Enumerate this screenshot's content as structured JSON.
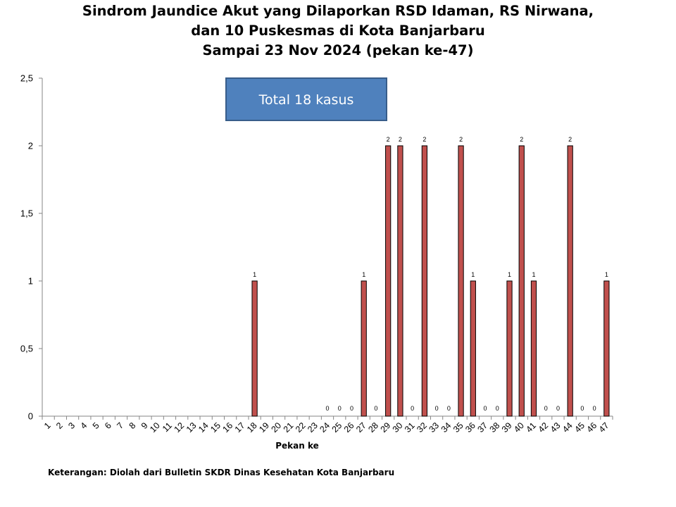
{
  "title_lines": [
    "Sindrom Jaundice Akut yang Dilaporkan RSD Idaman, RS Nirwana,",
    "dan 10 Puskesmas di Kota Banjarbaru",
    "Sampai 23 Nov 2024 (pekan ke-47)"
  ],
  "annotation": "Total 18 kasus",
  "footnote": "Keterangan: Diolah dari Bulletin SKDR Dinas Kesehatan Kota Banjarbaru",
  "colors": {
    "bar_fill": "#c0504d",
    "bar_stroke": "#000000",
    "box_fill": "#4f81bd",
    "box_stroke": "#385d8a"
  },
  "chart_data": {
    "type": "bar",
    "xlabel": "Pekan ke",
    "ylabel": "",
    "ylim": [
      0,
      2.5
    ],
    "y_ticks": [
      "0",
      "0,5",
      "1",
      "1,5",
      "2",
      "2,5"
    ],
    "grid": false,
    "legend": "none",
    "categories": [
      "1",
      "2",
      "3",
      "4",
      "5",
      "6",
      "7",
      "8",
      "9",
      "10",
      "11",
      "12",
      "13",
      "14",
      "15",
      "16",
      "17",
      "18",
      "19",
      "20",
      "21",
      "22",
      "23",
      "24",
      "25",
      "26",
      "27",
      "28",
      "29",
      "30",
      "31",
      "32",
      "33",
      "34",
      "35",
      "36",
      "37",
      "38",
      "39",
      "40",
      "41",
      "42",
      "43",
      "44",
      "45",
      "46",
      "47"
    ],
    "values": [
      null,
      null,
      null,
      null,
      null,
      null,
      null,
      null,
      null,
      null,
      null,
      null,
      null,
      null,
      null,
      null,
      null,
      1,
      null,
      null,
      null,
      null,
      null,
      0,
      0,
      0,
      1,
      0,
      2,
      2,
      0,
      2,
      0,
      0,
      2,
      1,
      0,
      0,
      1,
      2,
      1,
      0,
      0,
      2,
      0,
      0,
      1
    ],
    "data_labels": [
      "",
      "",
      "",
      "",
      "",
      "",
      "",
      "",
      "",
      "",
      "",
      "",
      "",
      "",
      "",
      "",
      "",
      "1",
      "",
      "",
      "",
      "",
      "",
      "0",
      "0",
      "0",
      "1",
      "0",
      "2",
      "2",
      "0",
      "2",
      "0",
      "0",
      "2",
      "1",
      "0",
      "0",
      "1",
      "2",
      "1",
      "0",
      "0",
      "2",
      "0",
      "0",
      "1"
    ]
  }
}
